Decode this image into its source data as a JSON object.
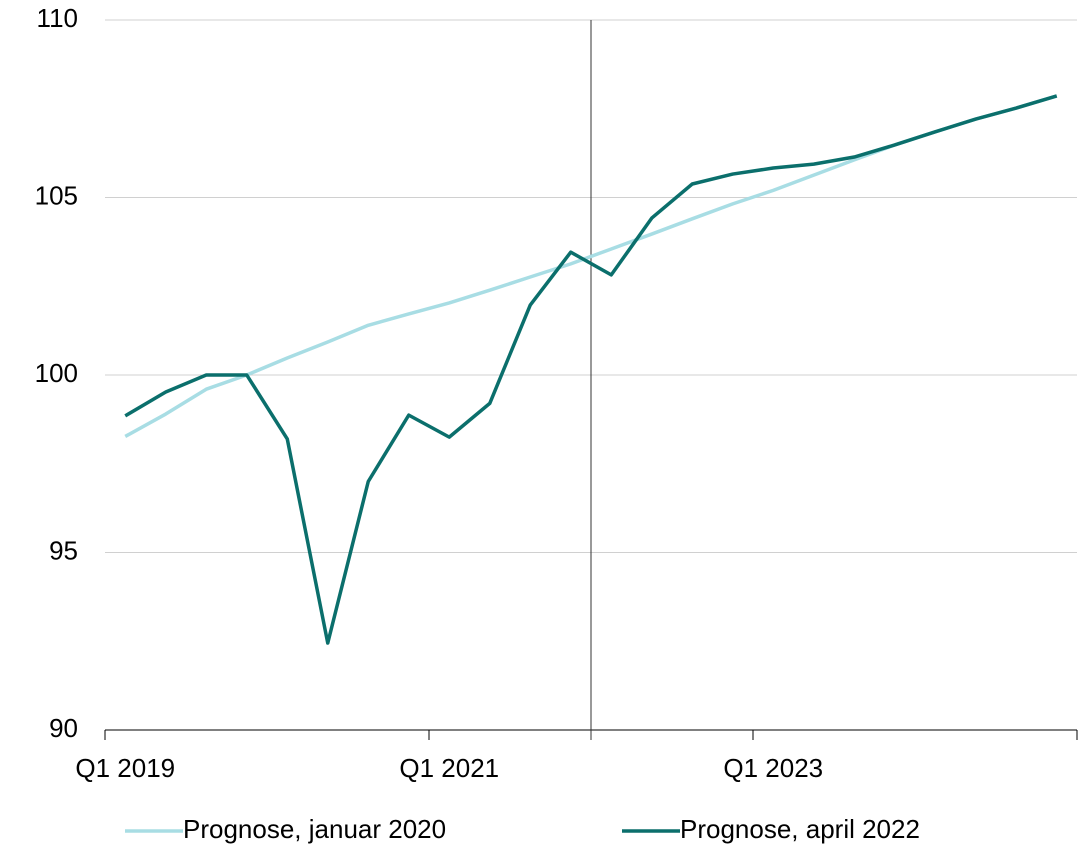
{
  "chart_data": {
    "type": "line",
    "categories": [
      "Q1 2019",
      null,
      null,
      null,
      null,
      null,
      null,
      null,
      "Q1 2021",
      null,
      null,
      null,
      null,
      null,
      null,
      null,
      "Q1 2023",
      null,
      null,
      null,
      null,
      null,
      null,
      null
    ],
    "series": [
      {
        "name": "Prognose, januar 2020",
        "color": "#a8dde4",
        "values": [
          98.27,
          98.9,
          99.6,
          100.0,
          100.48,
          100.93,
          101.4,
          101.72,
          102.03,
          102.39,
          102.76,
          103.13,
          103.55,
          103.97,
          104.4,
          104.82,
          105.2,
          105.63,
          106.06,
          106.48,
          106.85,
          107.21,
          107.52,
          107.86
        ]
      },
      {
        "name": "Prognose, april 2022",
        "color": "#0b6f6c",
        "values": [
          98.85,
          99.52,
          100.0,
          100.0,
          98.2,
          92.45,
          97.0,
          98.87,
          98.25,
          99.2,
          101.97,
          103.46,
          102.82,
          104.42,
          105.38,
          105.66,
          105.83,
          105.94,
          106.14,
          106.48,
          106.85,
          107.21,
          107.52,
          107.86
        ]
      }
    ],
    "ylim": [
      90,
      110
    ],
    "yticks": [
      90,
      95,
      100,
      105,
      110
    ],
    "grid": true
  }
}
